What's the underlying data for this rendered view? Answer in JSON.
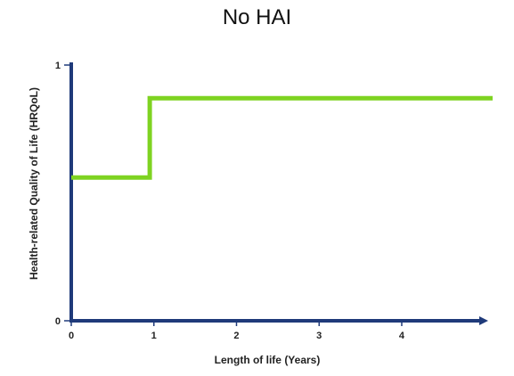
{
  "chart_data": {
    "type": "line",
    "title": "No HAI",
    "xlabel": "Length of life (Years)",
    "ylabel": "Health-related Quality of Life (HRQoL)",
    "x_ticks": [
      "0",
      "1",
      "2",
      "3",
      "4"
    ],
    "y_ticks": [
      "0",
      "1"
    ],
    "xlim": [
      0,
      5.1
    ],
    "ylim": [
      0,
      1
    ],
    "series": [
      {
        "x": [
          0,
          0.95,
          0.95,
          5.1
        ],
        "y": [
          0.56,
          0.56,
          0.87,
          0.87
        ],
        "color": "#7ed321"
      }
    ],
    "axis_color": "#1f3a7a",
    "grid": false
  }
}
